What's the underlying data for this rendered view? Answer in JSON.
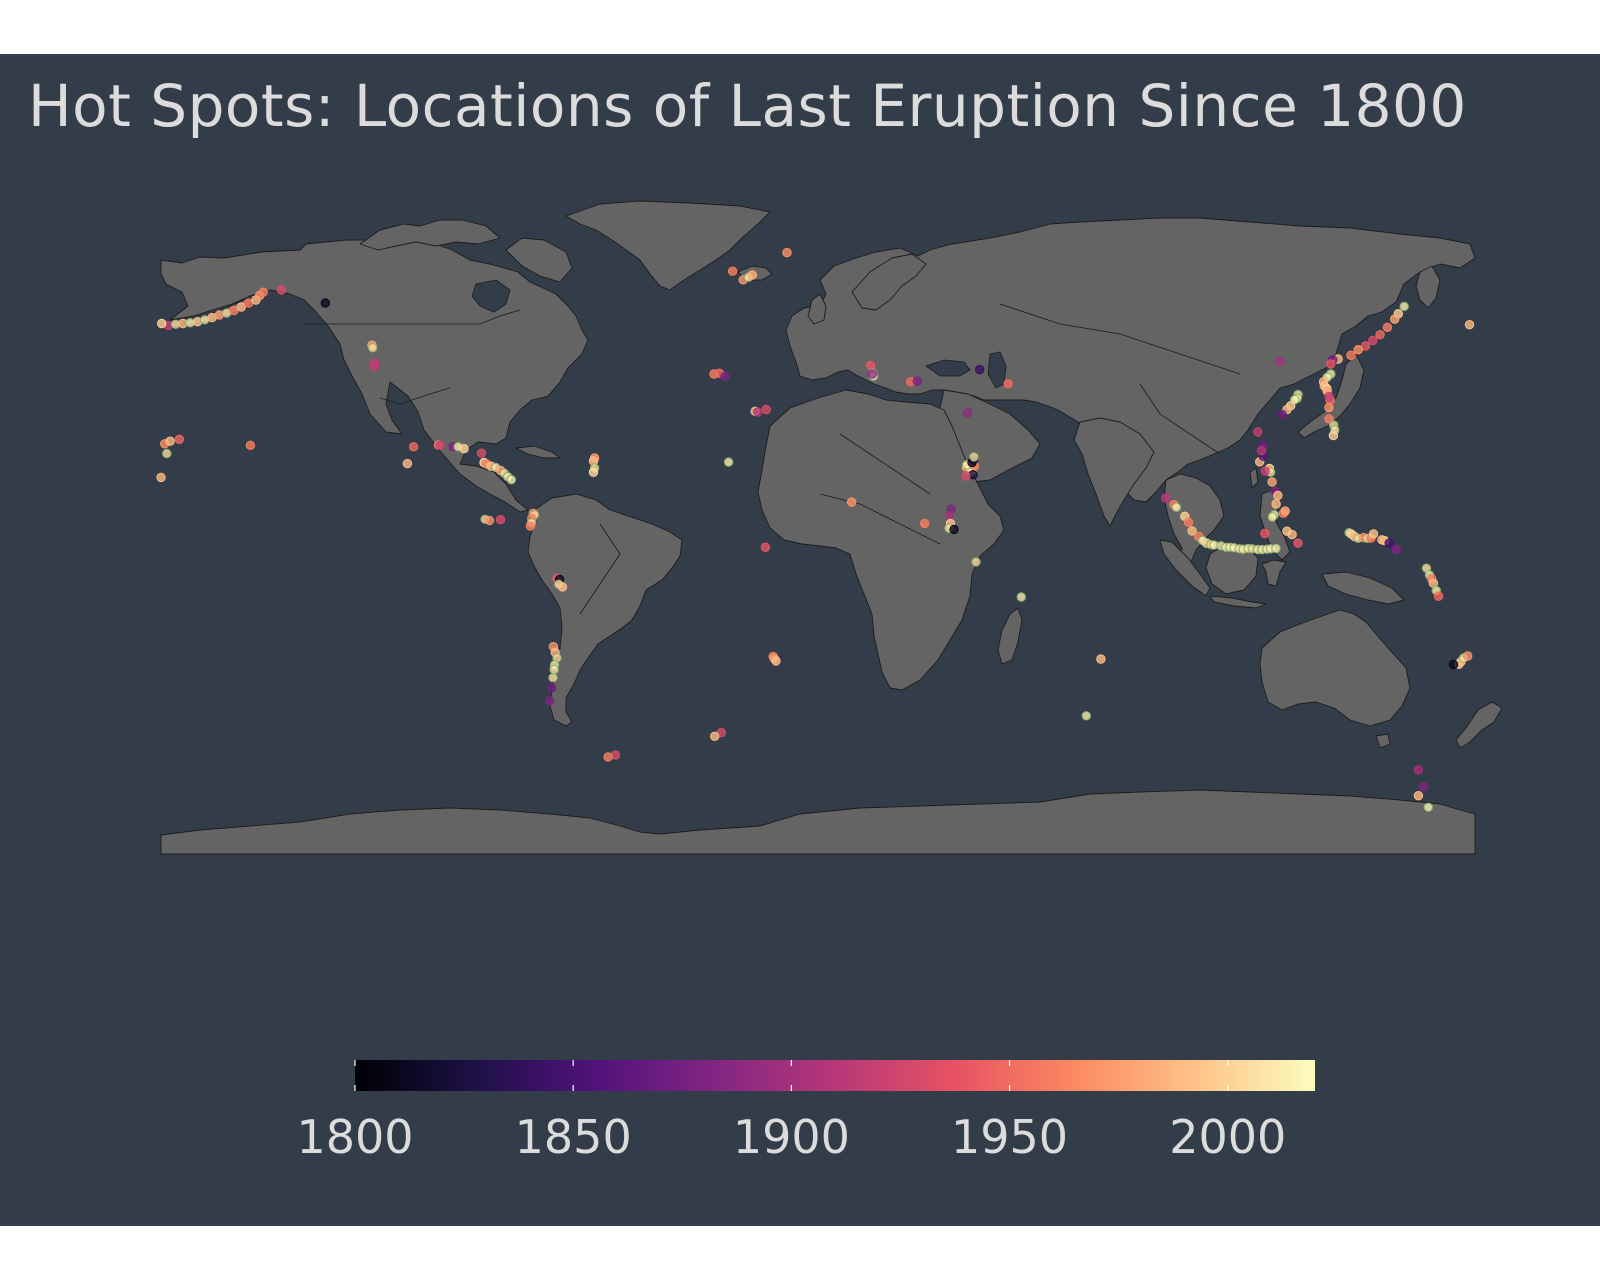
{
  "title": "Hot Spots: Locations of Last Eruption Since 1800",
  "colors": {
    "page_background": "#ffffff",
    "panel_background": "#333d49",
    "land": "#646464",
    "border": "#1c1c1c",
    "title_text": "#dcdcdc"
  },
  "legend": {
    "palette": "magma",
    "range": [
      1800,
      2020
    ],
    "stops": [
      "#000004",
      "#1d1147",
      "#51127c",
      "#822681",
      "#b73779",
      "#e75263",
      "#fc8961",
      "#fec287",
      "#fcfdbf"
    ],
    "ticks": [
      {
        "value": 1800,
        "label": "1800"
      },
      {
        "value": 1850,
        "label": "1850"
      },
      {
        "value": 1900,
        "label": "1900"
      },
      {
        "value": 1950,
        "label": "1950"
      },
      {
        "value": 2000,
        "label": "2000"
      }
    ],
    "position": "bottom"
  },
  "chart_data": {
    "type": "scatter",
    "projection": "equirectangular",
    "title": "Hot Spots: Locations of Last Eruption Since 1800",
    "x_range": [
      -180,
      180
    ],
    "y_range": [
      -90,
      84
    ],
    "color_variable_range": [
      1800,
      2020
    ],
    "series": [
      {
        "points": [
          [
            -178,
            51.5,
            1920
          ],
          [
            -176,
            51.8,
            2008
          ],
          [
            -174,
            52,
            1990
          ],
          [
            -172,
            52.2,
            2015
          ],
          [
            -170,
            52.5,
            1995
          ],
          [
            -168,
            53,
            2010
          ],
          [
            -166,
            53.6,
            1990
          ],
          [
            -164,
            54.3,
            1975
          ],
          [
            -162,
            54.8,
            2005
          ],
          [
            -160,
            55.5,
            1960
          ],
          [
            -158,
            56.4,
            1985
          ],
          [
            -156,
            57.5,
            1955
          ],
          [
            -154,
            58.3,
            1990
          ],
          [
            -153,
            59.5,
            1975
          ],
          [
            -152,
            60.4,
            1960
          ],
          [
            -147,
            61,
            1930
          ],
          [
            -135,
            57.5,
            1810
          ],
          [
            -122.2,
            46.2,
            1980
          ],
          [
            -122,
            45.5,
            2005
          ],
          [
            -121.5,
            41.4,
            1915
          ],
          [
            -121.5,
            40.5,
            1915
          ],
          [
            -155.5,
            19.4,
            1960
          ],
          [
            -104,
            19.5,
            1960
          ],
          [
            -103.5,
            19.4,
            1920
          ],
          [
            -100,
            19,
            1880
          ],
          [
            -98.6,
            19,
            2015
          ],
          [
            -97,
            18.5,
            2000
          ],
          [
            -92.2,
            17.3,
            1930
          ],
          [
            -91.5,
            14.8,
            2000
          ],
          [
            -90.8,
            14.4,
            1960
          ],
          [
            -89.6,
            13.8,
            1995
          ],
          [
            -88.3,
            13.5,
            2010
          ],
          [
            -87,
            12.7,
            1980
          ],
          [
            -86,
            12,
            2005
          ],
          [
            -85,
            11,
            2015
          ],
          [
            -84,
            10.2,
            2016
          ],
          [
            -110.8,
            19,
            1950
          ],
          [
            -112.5,
            14.5,
            1990
          ],
          [
            -91.2,
            -0.4,
            2005
          ],
          [
            -90,
            -0.7,
            1970
          ],
          [
            -87,
            -0.5,
            1930
          ],
          [
            -78,
            1.2,
            1970
          ],
          [
            -77.7,
            0.8,
            2005
          ],
          [
            -78.4,
            -0.2,
            1960
          ],
          [
            -78.5,
            -1.4,
            2015
          ],
          [
            -78.8,
            -2.2,
            1960
          ],
          [
            -71.5,
            -16.2,
            1940
          ],
          [
            -70.8,
            -16.5,
            1810
          ],
          [
            -71,
            -17.8,
            2010
          ],
          [
            -70,
            -18.5,
            1990
          ],
          [
            -61.2,
            16,
            1975
          ],
          [
            -61.5,
            15.2,
            1990
          ],
          [
            -61.2,
            13.3,
            2005
          ],
          [
            -61.5,
            12.2,
            2003
          ],
          [
            -72.5,
            -34.5,
            1970
          ],
          [
            -72,
            -36,
            1990
          ],
          [
            -71.5,
            -37.5,
            2005
          ],
          [
            -72.2,
            -39.4,
            2015
          ],
          [
            -72.3,
            -40.6,
            2011
          ],
          [
            -72.6,
            -42.8,
            2010
          ],
          [
            -73,
            -45.5,
            1870
          ],
          [
            -73.5,
            -49,
            1880
          ],
          [
            -179,
            19.8,
            1970
          ],
          [
            -177.5,
            20.5,
            1990
          ],
          [
            -175,
            21,
            1950
          ],
          [
            -178.4,
            17.2,
            2005
          ],
          [
            -180,
            10.8,
            1990
          ],
          [
            -23.4,
            66,
            1960
          ],
          [
            -20.5,
            63.7,
            1973
          ],
          [
            -19,
            64.4,
            2014
          ],
          [
            -18,
            65,
            1984
          ],
          [
            -8.5,
            71,
            1970
          ],
          [
            -28.5,
            38.5,
            1960
          ],
          [
            -27,
            38.7,
            1950
          ],
          [
            -25.5,
            37.8,
            1880
          ],
          [
            -17.2,
            28.5,
            1990
          ],
          [
            -16.5,
            28.3,
            1909
          ],
          [
            -14.2,
            29,
            1930
          ],
          [
            -24.5,
            14.9,
            2015
          ],
          [
            -14.4,
            -7.9,
            1940
          ],
          [
            -12.3,
            -37.1,
            1960
          ],
          [
            -12,
            -37.6,
            1975
          ],
          [
            -11.5,
            -38.3,
            1990
          ],
          [
            -26.5,
            -57.5,
            1930
          ],
          [
            -28.3,
            -58.5,
            1990
          ],
          [
            -55.5,
            -63.5,
            1930
          ],
          [
            -57.5,
            -64,
            1960
          ],
          [
            14.4,
            40.8,
            1940
          ],
          [
            15,
            38.8,
            2019
          ],
          [
            15.2,
            37.9,
            2020
          ],
          [
            14.9,
            38.5,
            1890
          ],
          [
            25.4,
            36.4,
            1950
          ],
          [
            27.2,
            36.6,
            1880
          ],
          [
            44.3,
            39.7,
            1840
          ],
          [
            41,
            28.1,
            1890
          ],
          [
            52.1,
            35.9,
            1950
          ],
          [
            40.7,
            13.6,
            1995
          ],
          [
            41.2,
            12.8,
            1960
          ],
          [
            42.3,
            12.3,
            2005
          ],
          [
            41.5,
            13.4,
            2011
          ],
          [
            42.8,
            13.8,
            1965
          ],
          [
            40.8,
            14.2,
            2015
          ],
          [
            42.6,
            15.5,
            1850
          ],
          [
            42.2,
            14.8,
            1810
          ],
          [
            42.7,
            16.3,
            2007
          ],
          [
            42.5,
            11.5,
            1820
          ],
          [
            40.5,
            11.2,
            1930
          ],
          [
            36.5,
            2.3,
            1880
          ],
          [
            36,
            0.5,
            1900
          ],
          [
            36.3,
            -1.5,
            1995
          ],
          [
            35.9,
            -2.8,
            2008
          ],
          [
            29.2,
            -1.5,
            1960
          ],
          [
            37.3,
            -3.1,
            1810
          ],
          [
            43.3,
            -11.8,
            2005
          ],
          [
            55.7,
            -21.2,
            2015
          ],
          [
            9.2,
            4.2,
            1970
          ],
          [
            77.5,
            -37.8,
            1990
          ],
          [
            73.5,
            -53,
            2013
          ],
          [
            160.6,
            56.6,
            2015
          ],
          [
            159,
            54.6,
            2000
          ],
          [
            158,
            53.2,
            1980
          ],
          [
            156,
            51,
            1960
          ],
          [
            154,
            49,
            1950
          ],
          [
            152,
            47.5,
            1930
          ],
          [
            150,
            46,
            1940
          ],
          [
            148,
            45,
            1970
          ],
          [
            146,
            43.5,
            1960
          ],
          [
            142.5,
            42.5,
            1990
          ],
          [
            141,
            42.3,
            1870
          ],
          [
            140.5,
            41.2,
            1940
          ],
          [
            140.5,
            38.5,
            2014
          ],
          [
            139.5,
            37.6,
            2018
          ],
          [
            138.5,
            36.4,
            1990
          ],
          [
            138.7,
            35.3,
            1990
          ],
          [
            139.4,
            34.6,
            2000
          ],
          [
            139.5,
            33.9,
            1980
          ],
          [
            140.3,
            31.5,
            1955
          ],
          [
            140,
            29.5,
            1970
          ],
          [
            140,
            26.5,
            1960
          ],
          [
            141.3,
            24.8,
            2005
          ],
          [
            141.6,
            23.5,
            2010
          ],
          [
            141.2,
            22,
            2000
          ],
          [
            140,
            32.5,
            1920
          ],
          [
            131.5,
            33,
            2010
          ],
          [
            131.3,
            32,
            2015
          ],
          [
            130.6,
            31.6,
            2016
          ],
          [
            129.5,
            30,
            2000
          ],
          [
            128.5,
            29,
            1990
          ],
          [
            127.2,
            27.6,
            1870
          ],
          [
            126.5,
            41.8,
            1900
          ],
          [
            120.5,
            23,
            1920
          ],
          [
            123.7,
            13.2,
            2000
          ],
          [
            124,
            12.2,
            2005
          ],
          [
            122.5,
            12.5,
            1920
          ],
          [
            121,
            15,
            1990
          ],
          [
            122,
            16.5,
            1860
          ],
          [
            122,
            19.5,
            1870
          ],
          [
            121.5,
            18,
            1910
          ],
          [
            124.4,
            9.6,
            1980
          ],
          [
            125.2,
            7.1,
            1880
          ],
          [
            126,
            6,
            1990
          ],
          [
            125.5,
            3.7,
            1990
          ],
          [
            127.5,
            1.2,
            1960
          ],
          [
            128,
            1.8,
            1980
          ],
          [
            125,
            0.8,
            2015
          ],
          [
            124.5,
            0.2,
            2011
          ],
          [
            122.4,
            -4.2,
            1940
          ],
          [
            95.3,
            5.3,
            1910
          ],
          [
            97.5,
            3.5,
            1960
          ],
          [
            98.2,
            2.8,
            2015
          ],
          [
            100.5,
            0.4,
            2000
          ],
          [
            101.5,
            -1.2,
            1960
          ],
          [
            102.5,
            -3.5,
            1990
          ],
          [
            104.3,
            -5,
            1960
          ],
          [
            105.4,
            -6.1,
            2018
          ],
          [
            106.5,
            -6.8,
            2000
          ],
          [
            107.7,
            -7.2,
            2005
          ],
          [
            108.5,
            -7.3,
            2015
          ],
          [
            110.4,
            -7.5,
            2010
          ],
          [
            111.8,
            -7.9,
            2014
          ],
          [
            112.9,
            -7.9,
            2016
          ],
          [
            114,
            -8,
            2015
          ],
          [
            115.5,
            -8.3,
            2017
          ],
          [
            116.5,
            -8.4,
            2010
          ],
          [
            117.9,
            -8.2,
            2016
          ],
          [
            119,
            -8.3,
            2005
          ],
          [
            120.5,
            -8.5,
            2013
          ],
          [
            121.7,
            -8.5,
            2010
          ],
          [
            123,
            -8.4,
            2015
          ],
          [
            124,
            -8.3,
            2014
          ],
          [
            125.5,
            -8.2,
            2015
          ],
          [
            129.9,
            -4.5,
            1990
          ],
          [
            128.5,
            -3.6,
            1995
          ],
          [
            131.5,
            -6.8,
            1940
          ],
          [
            145.5,
            -4,
            2015
          ],
          [
            146.2,
            -4.4,
            2000
          ],
          [
            147,
            -5,
            1990
          ],
          [
            148,
            -5.5,
            2005
          ],
          [
            149.5,
            -5.3,
            1970
          ],
          [
            150.5,
            -5.5,
            2005
          ],
          [
            151.5,
            -5.4,
            1960
          ],
          [
            152.2,
            -4.3,
            1994
          ],
          [
            154.5,
            -5.9,
            1990
          ],
          [
            155.2,
            -6.1,
            1990
          ],
          [
            156.5,
            -6.8,
            1850
          ],
          [
            158.5,
            -8.5,
            1880
          ],
          [
            166.7,
            -13.5,
            2010
          ],
          [
            167.5,
            -15.3,
            2015
          ],
          [
            168.1,
            -16.3,
            1960
          ],
          [
            168.6,
            -17.5,
            1990
          ],
          [
            169.4,
            -19.5,
            2015
          ],
          [
            170,
            -21,
            1950
          ],
          [
            175.6,
            -39.2,
            2000
          ],
          [
            176.2,
            -38.5,
            1990
          ],
          [
            176.9,
            -37.5,
            2012
          ],
          [
            178,
            -37,
            1970
          ],
          [
            174.1,
            -39.3,
            1810
          ],
          [
            167.2,
            -77.5,
            2015
          ],
          [
            164.5,
            -67.5,
            1900
          ],
          [
            166,
            -72,
            1880
          ],
          [
            164.5,
            -74.4,
            1990
          ],
          [
            178.5,
            51.7,
            1990
          ],
          [
            -179.8,
            52,
            2000
          ]
        ]
      }
    ]
  }
}
